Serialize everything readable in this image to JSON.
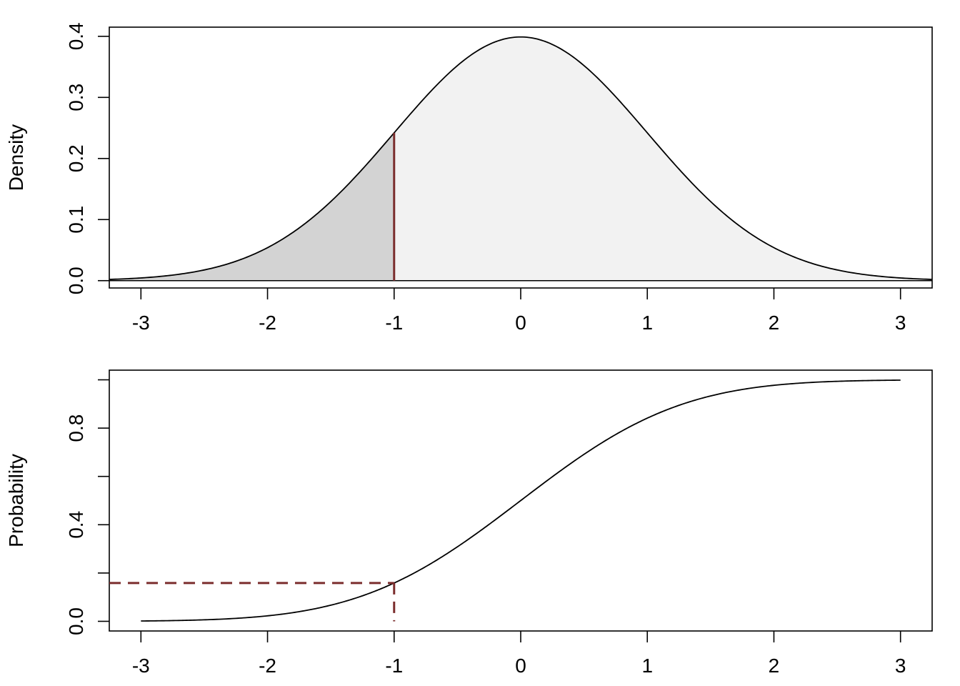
{
  "chart_data": [
    {
      "type": "area",
      "ylabel": "Density",
      "xlabel": "",
      "xlim": [
        -3.25,
        3.25
      ],
      "ylim": [
        -0.012,
        0.415
      ],
      "xticks": [
        -3,
        -2,
        -1,
        0,
        1,
        2,
        3
      ],
      "xtick_labels": [
        "-3",
        "-2",
        "-1",
        "0",
        "1",
        "2",
        "3"
      ],
      "yticks": [
        0.0,
        0.1,
        0.2,
        0.3,
        0.4
      ],
      "ytick_labels": [
        "0.0",
        "0.1",
        "0.2",
        "0.3",
        "0.4"
      ],
      "series": [
        {
          "values": "standard normal density",
          "x": [
            -3,
            -2.5,
            -2,
            -1.5,
            -1,
            -0.5,
            0,
            0.5,
            1,
            1.5,
            2,
            2.5,
            3
          ],
          "y": [
            0.0044,
            0.0175,
            0.054,
            0.1295,
            0.242,
            0.3521,
            0.3989,
            0.3521,
            0.242,
            0.1295,
            0.054,
            0.0175,
            0.0044
          ]
        }
      ],
      "shaded_left_of": -1,
      "marker_x": -1,
      "colors": {
        "curve": "#000000",
        "fill_light": "#f2f2f2",
        "fill_dark": "#d3d3d3",
        "marker": "#7b2d2d"
      }
    },
    {
      "type": "line",
      "ylabel": "Probability",
      "xlabel": "",
      "xlim": [
        -3.25,
        3.25
      ],
      "ylim": [
        -0.04,
        1.04
      ],
      "xticks": [
        -3,
        -2,
        -1,
        0,
        1,
        2,
        3
      ],
      "xtick_labels": [
        "-3",
        "-2",
        "-1",
        "0",
        "1",
        "2",
        "3"
      ],
      "yticks": [
        0.0,
        0.2,
        0.4,
        0.6,
        0.8,
        1.0
      ],
      "ytick_labels": [
        "0.0",
        "",
        "0.4",
        "",
        "0.8",
        ""
      ],
      "series": [
        {
          "values": "standard normal CDF",
          "x": [
            -3,
            -2.5,
            -2,
            -1.5,
            -1,
            -0.5,
            0,
            0.5,
            1,
            1.5,
            2,
            2.5,
            3
          ],
          "y": [
            0.0013,
            0.0062,
            0.0228,
            0.0668,
            0.1587,
            0.3085,
            0.5,
            0.6915,
            0.8413,
            0.9332,
            0.9772,
            0.9938,
            0.9987
          ]
        }
      ],
      "marker_point": {
        "x": -1,
        "y": 0.1587
      },
      "colors": {
        "curve": "#000000",
        "marker": "#7b2d2d"
      }
    }
  ]
}
